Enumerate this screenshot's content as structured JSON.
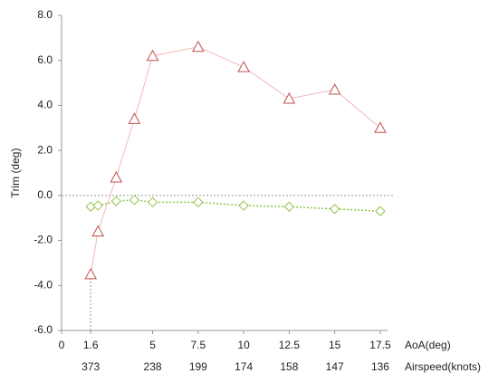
{
  "chart_data": {
    "type": "line",
    "ylabel": "Trim (deg)",
    "xlabel": "AoA(deg)",
    "x2label": "Airspeed(knots)",
    "x": [
      1.6,
      2,
      3,
      4,
      5,
      7.5,
      10,
      12.5,
      15,
      17.5
    ],
    "series": [
      {
        "color": "#c0504d",
        "line_color": "#f2b8b8",
        "marker": "triangle",
        "dashed": false,
        "values": [
          -3.5,
          -1.6,
          0.8,
          3.4,
          6.2,
          6.6,
          5.7,
          4.3,
          4.7,
          3.0
        ]
      },
      {
        "color": "#8fc44a",
        "line_color": "#8fc44a",
        "marker": "diamond",
        "dashed": true,
        "values": [
          -0.5,
          -0.45,
          -0.25,
          -0.2,
          -0.3,
          -0.3,
          -0.45,
          -0.5,
          -0.6,
          -0.7
        ]
      }
    ],
    "xlim": [
      0,
      17.9
    ],
    "xticks": [
      0,
      1.6,
      5,
      7.5,
      10,
      12.5,
      15,
      17.5
    ],
    "airspeed_ticks": [
      null,
      373,
      238,
      199,
      174,
      158,
      147,
      136
    ],
    "ylim": [
      -6,
      8
    ],
    "yticks": [
      {
        "value": -6,
        "label": "-6.0"
      },
      {
        "value": -4,
        "label": "-4.0"
      },
      {
        "value": -2,
        "label": "-2.0"
      },
      {
        "value": 0,
        "label": "0.0"
      },
      {
        "value": 2,
        "label": "2.0"
      },
      {
        "value": 4,
        "label": "4.0"
      },
      {
        "value": 6,
        "label": "6.0"
      },
      {
        "value": 8,
        "label": "8.0"
      }
    ],
    "zero_line": true
  }
}
